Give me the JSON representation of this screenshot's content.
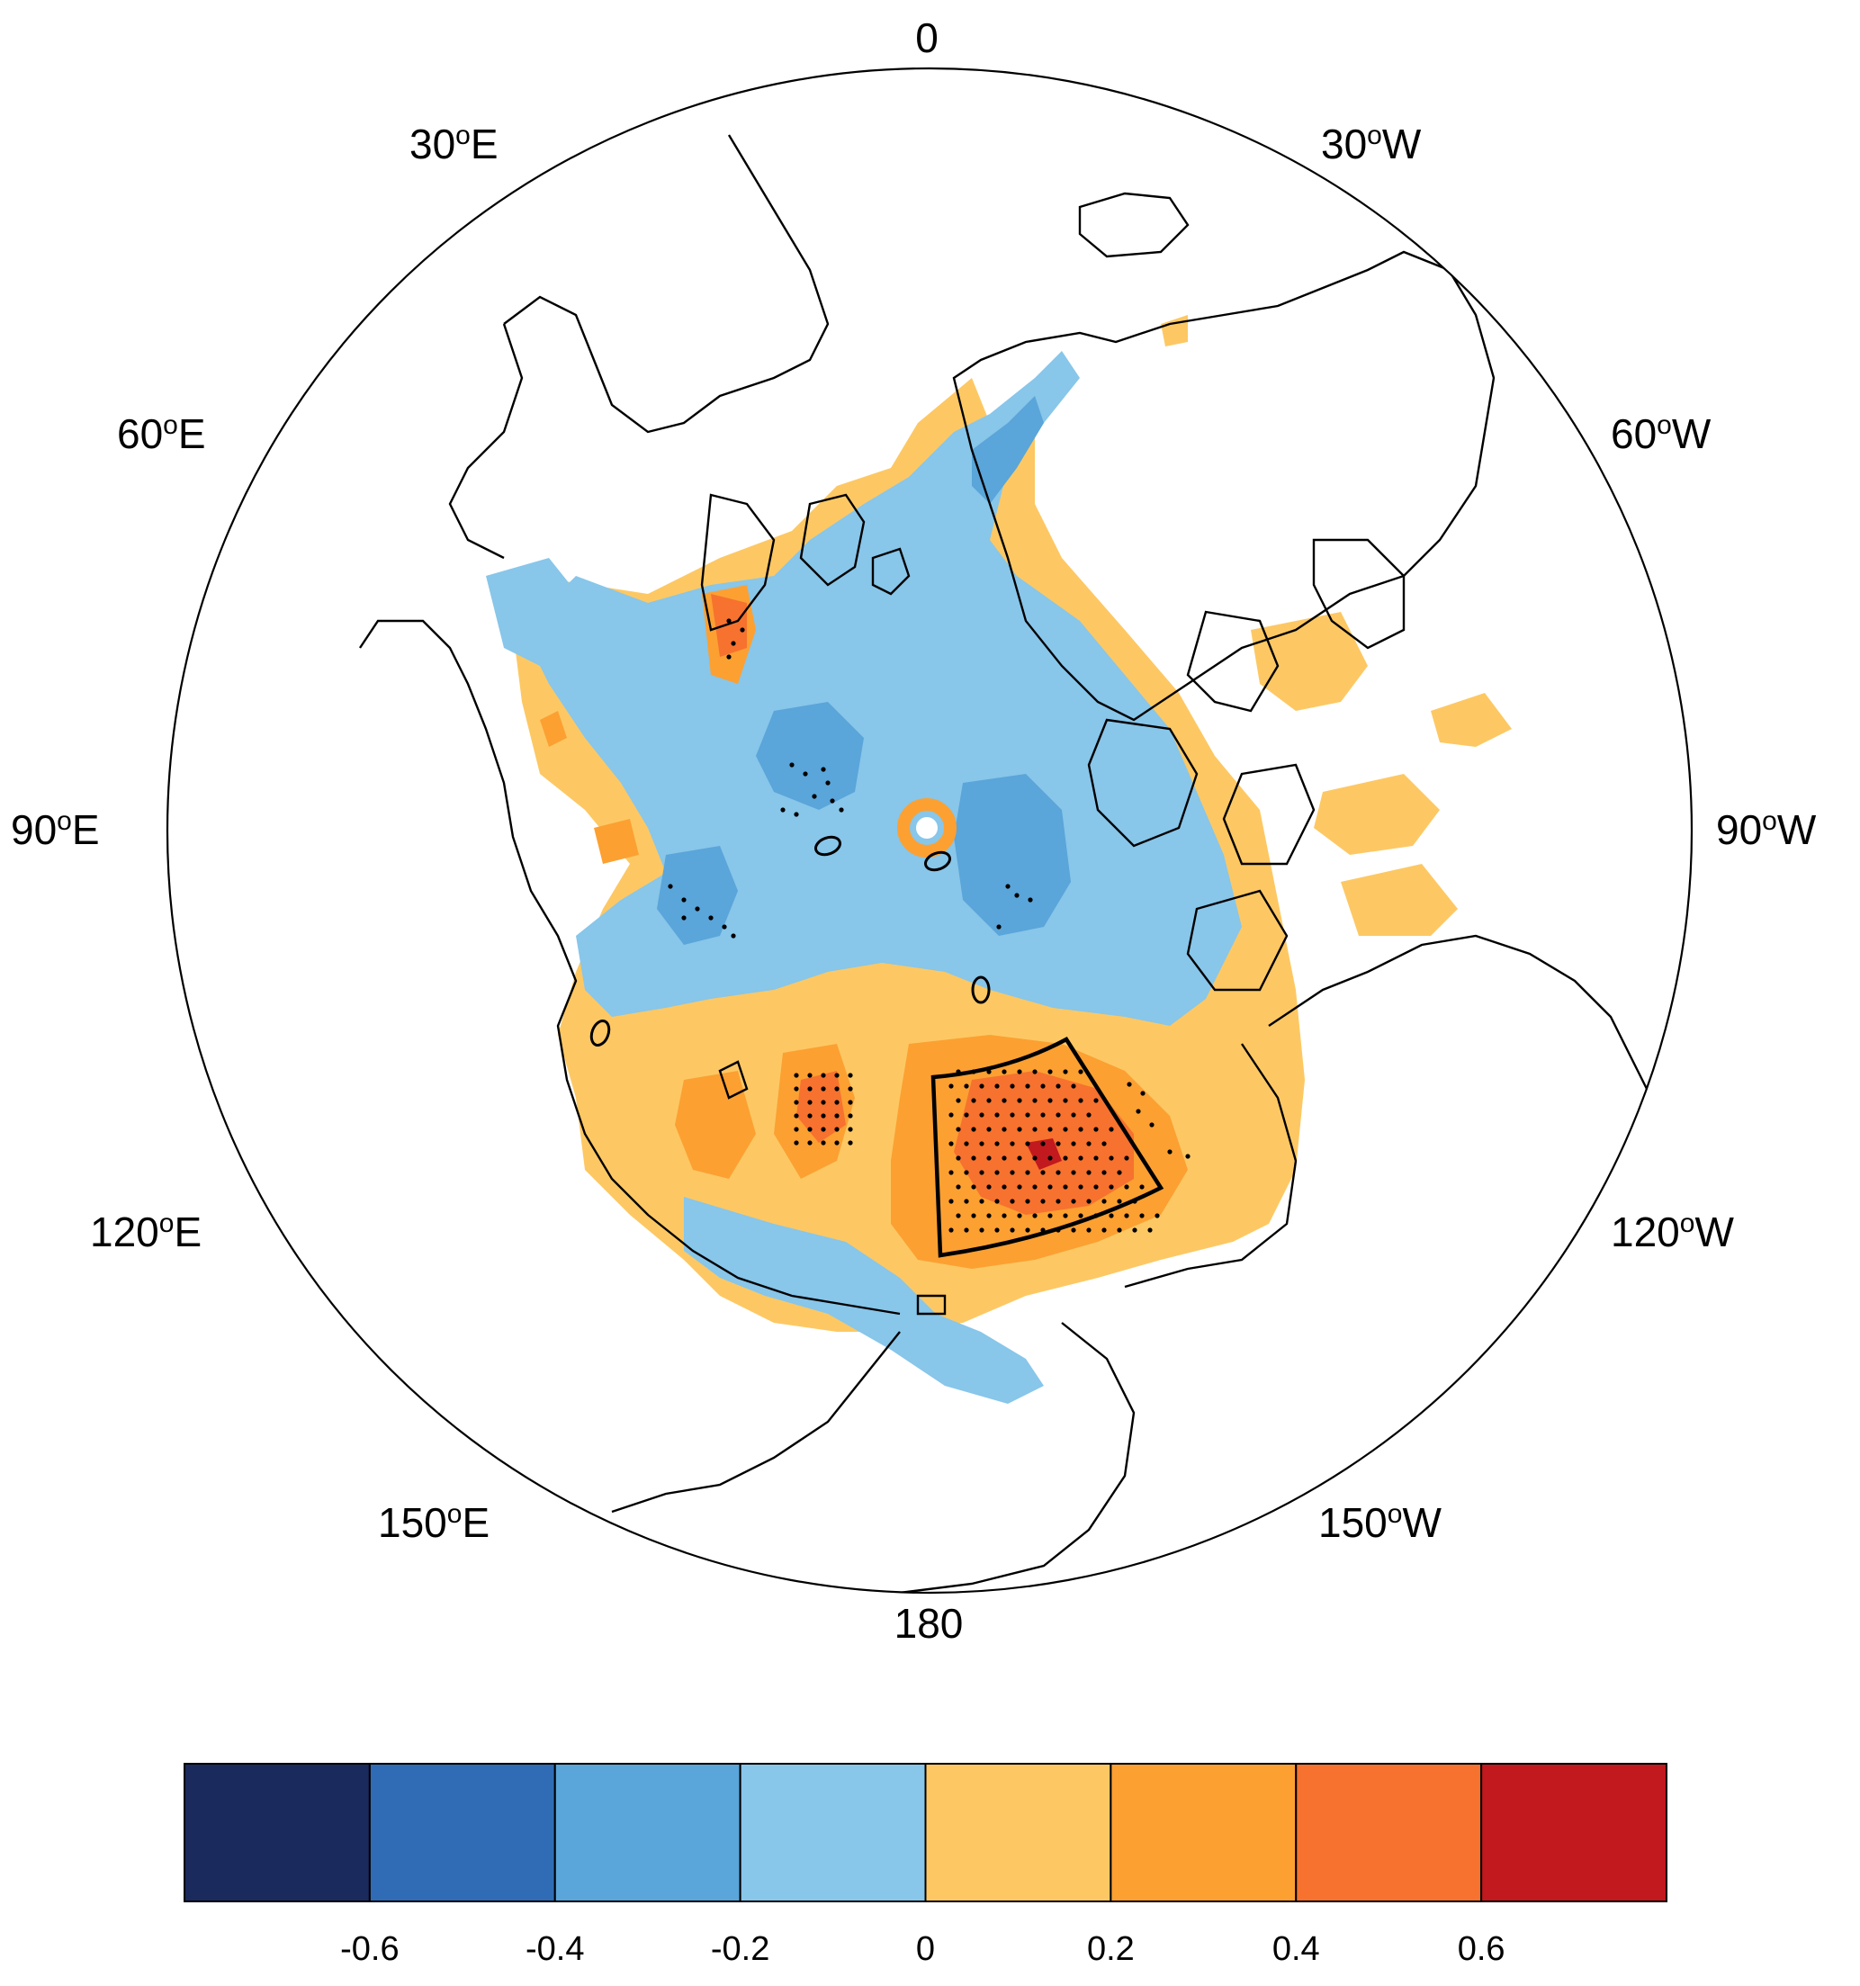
{
  "map": {
    "projection": "north-polar-stereographic",
    "longitude_labels": [
      {
        "id": "lon-0",
        "text": "0",
        "sup": "",
        "suffix": ""
      },
      {
        "id": "lon-30w",
        "text": "30",
        "sup": "o",
        "suffix": "W"
      },
      {
        "id": "lon-60w",
        "text": "60",
        "sup": "o",
        "suffix": "W"
      },
      {
        "id": "lon-90w",
        "text": "90",
        "sup": "o",
        "suffix": "W"
      },
      {
        "id": "lon-120w",
        "text": "120",
        "sup": "o",
        "suffix": "W"
      },
      {
        "id": "lon-150w",
        "text": "150",
        "sup": "o",
        "suffix": "W"
      },
      {
        "id": "lon-180",
        "text": "180",
        "sup": "",
        "suffix": ""
      },
      {
        "id": "lon-150e",
        "text": "150",
        "sup": "o",
        "suffix": "E"
      },
      {
        "id": "lon-120e",
        "text": "120",
        "sup": "o",
        "suffix": "E"
      },
      {
        "id": "lon-90e",
        "text": "90",
        "sup": "o",
        "suffix": "E"
      },
      {
        "id": "lon-60e",
        "text": "60",
        "sup": "o",
        "suffix": "E"
      },
      {
        "id": "lon-30e",
        "text": "30",
        "sup": "o",
        "suffix": "E"
      }
    ],
    "highlighted_region": "box in the Bering / Chukchi Sea sector with significant positive values",
    "significance": "stippled dots"
  },
  "colorbar": {
    "colors": [
      "#1b2a5c",
      "#2f6cb5",
      "#5aa5d9",
      "#88c6ea",
      "#fdc863",
      "#fca032",
      "#f6722e",
      "#c1191e"
    ],
    "ticks": [
      "-0.6",
      "-0.4",
      "-0.2",
      "0",
      "0.2",
      "0.4",
      "0.6"
    ]
  },
  "chart_data": {
    "type": "heatmap",
    "levels": [
      -0.6,
      -0.4,
      -0.2,
      0,
      0.2,
      0.4,
      0.6
    ],
    "colors": [
      "#1b2a5c",
      "#2f6cb5",
      "#5aa5d9",
      "#88c6ea",
      "#fdc863",
      "#fca032",
      "#f6722e",
      "#c1191e"
    ],
    "title": ""
  }
}
